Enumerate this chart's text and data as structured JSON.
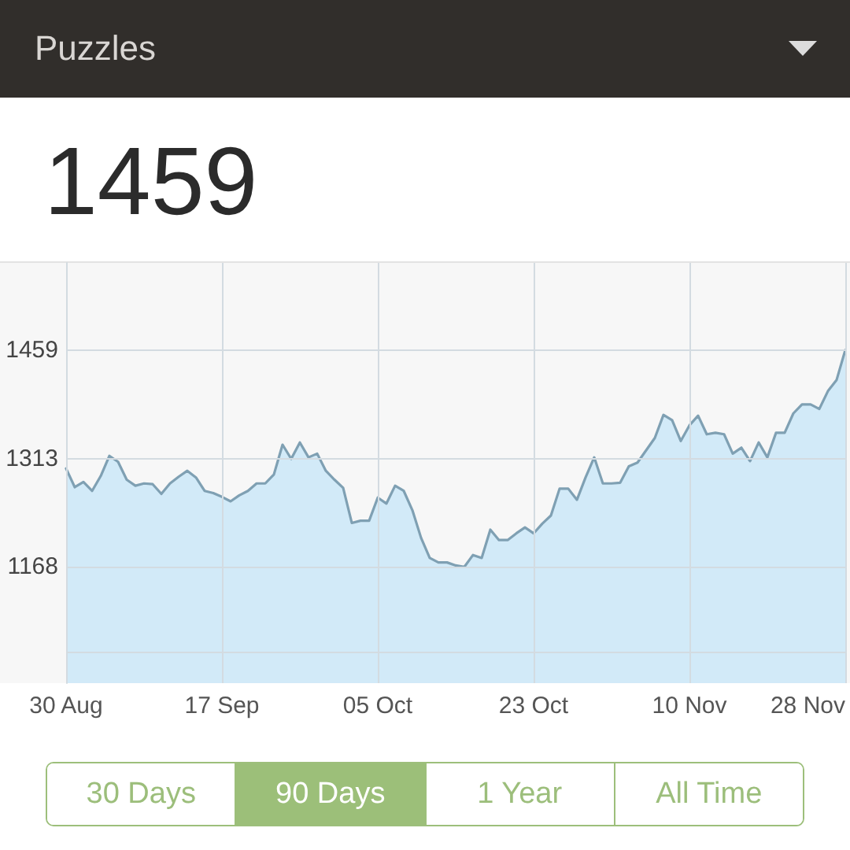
{
  "chart_data": {
    "type": "area",
    "title": "Puzzles",
    "subtitle": "1459",
    "x": [
      "--08-30",
      "--08-31",
      "--09-01",
      "--09-02",
      "--09-03",
      "--09-04",
      "--09-05",
      "--09-06",
      "--09-07",
      "--09-08",
      "--09-09",
      "--09-10",
      "--09-11",
      "--09-12",
      "--09-13",
      "--09-14",
      "--09-15",
      "--09-16",
      "--09-17",
      "--09-18",
      "--09-19",
      "--09-20",
      "--09-21",
      "--09-22",
      "--09-23",
      "--09-24",
      "--09-25",
      "--09-26",
      "--09-27",
      "--09-28",
      "--09-29",
      "--09-30",
      "--10-01",
      "--10-02",
      "--10-03",
      "--10-04",
      "--10-05",
      "--10-06",
      "--10-07",
      "--10-08",
      "--10-09",
      "--10-10",
      "--10-11",
      "--10-12",
      "--10-13",
      "--10-14",
      "--10-15",
      "--10-16",
      "--10-17",
      "--10-18",
      "--10-19",
      "--10-20",
      "--10-21",
      "--10-22",
      "--10-23",
      "--10-24",
      "--10-25",
      "--10-26",
      "--10-27",
      "--10-28",
      "--10-29",
      "--10-30",
      "--10-31",
      "--11-01",
      "--11-02",
      "--11-03",
      "--11-04",
      "--11-06",
      "--11-07",
      "--11-08",
      "--11-09",
      "--11-10",
      "--11-11",
      "--11-12",
      "--11-13",
      "--11-14",
      "--11-15",
      "--11-16",
      "--11-17",
      "--11-18",
      "--11-19",
      "--11-20",
      "--11-21",
      "--11-22",
      "--11-23",
      "--11-24",
      "--11-25",
      "--11-26",
      "--11-27",
      "--11-28"
    ],
    "values": [
      1300,
      1275,
      1282,
      1270,
      1290,
      1317,
      1309,
      1285,
      1277,
      1280,
      1279,
      1266,
      1280,
      1289,
      1297,
      1288,
      1270,
      1267,
      1262,
      1256,
      1264,
      1270,
      1280,
      1280,
      1292,
      1332,
      1313,
      1335,
      1315,
      1320,
      1297,
      1285,
      1274,
      1227,
      1230,
      1230,
      1261,
      1253,
      1277,
      1270,
      1244,
      1207,
      1180,
      1174,
      1174,
      1170,
      1168,
      1184,
      1180,
      1218,
      1204,
      1204,
      1213,
      1221,
      1213,
      1226,
      1237,
      1273,
      1273,
      1258,
      1288,
      1315,
      1280,
      1280,
      1281,
      1303,
      1308,
      1341,
      1372,
      1365,
      1337,
      1358,
      1371,
      1346,
      1348,
      1346,
      1320,
      1328,
      1310,
      1335,
      1315,
      1348,
      1348,
      1374,
      1386,
      1386,
      1380,
      1404,
      1419,
      1459
    ],
    "color": "#d2eaf8",
    "xlim": [
      "--08-30",
      "--11-28"
    ],
    "xticks": [
      {
        "value": "--08-30",
        "label": "30 Aug"
      },
      {
        "value": "--09-17",
        "label": "17 Sep"
      },
      {
        "value": "--10-05",
        "label": "05 Oct"
      },
      {
        "value": "--10-23",
        "label": "23 Oct"
      },
      {
        "value": "--11-10",
        "label": "10 Nov"
      },
      {
        "value": "--11-28",
        "label": "28 Nov"
      }
    ],
    "ylim": [
      1012,
      1576
    ],
    "yticks": [
      {
        "value": 1053,
        "label": null
      },
      1168,
      1313,
      1459
    ],
    "grid": true,
    "annotations": [
      "30 Days",
      "90 Days",
      "1 Year",
      "All Time"
    ]
  }
}
